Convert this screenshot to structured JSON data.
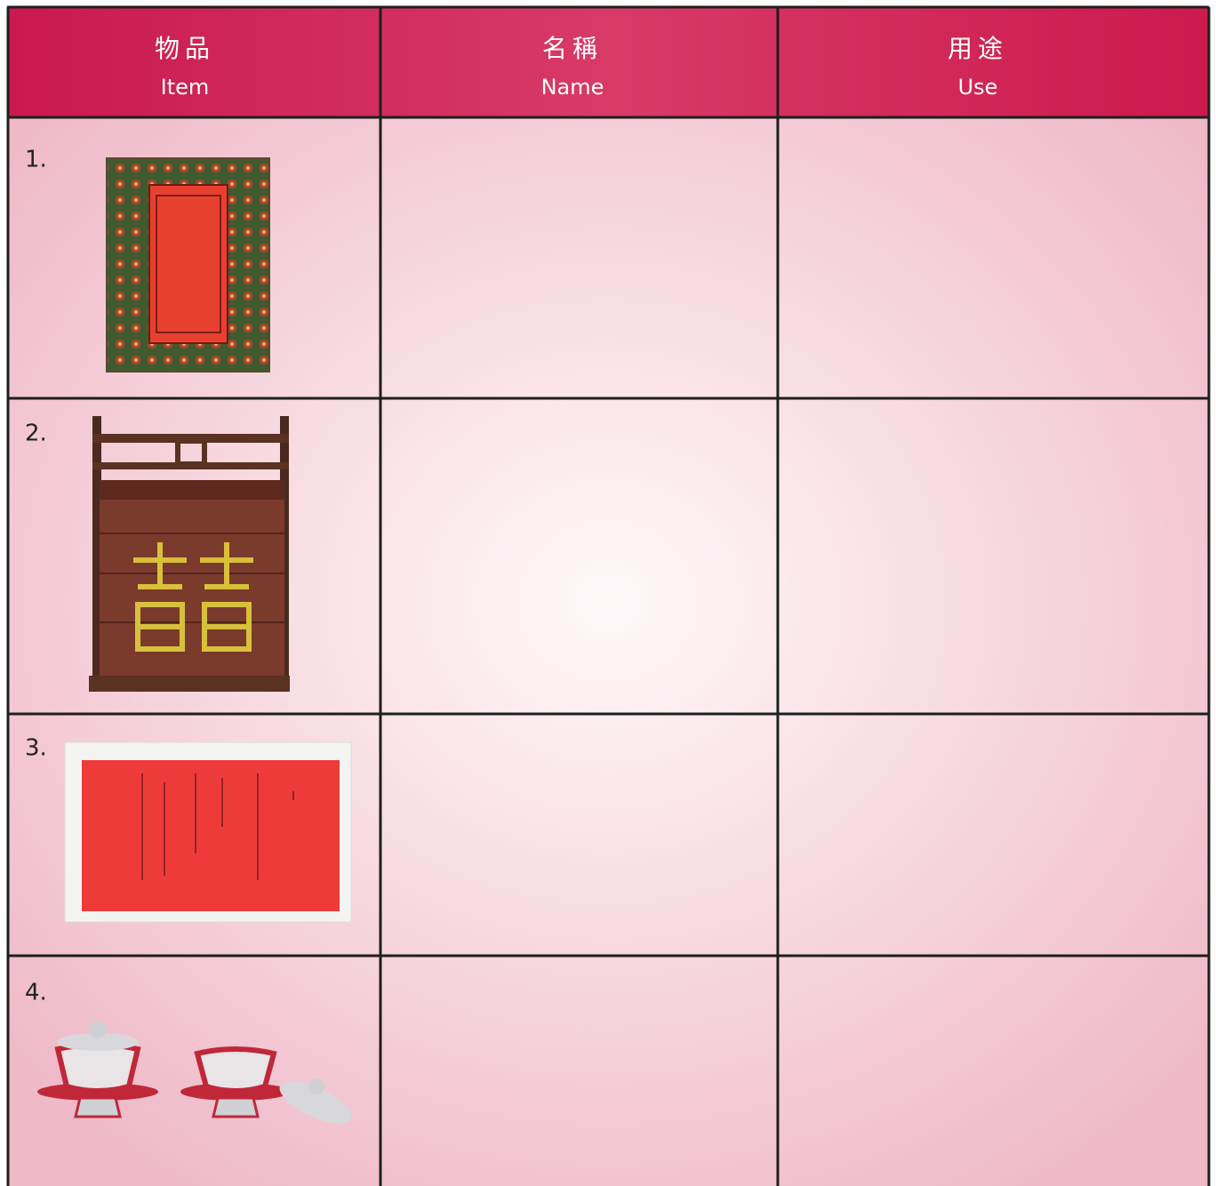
{
  "table": {
    "header": [
      {
        "zh": "物品",
        "en": "Item"
      },
      {
        "zh": "名稱",
        "en": "Name"
      },
      {
        "zh": "用途",
        "en": "Use"
      }
    ],
    "rows": [
      {
        "number": "1."
      },
      {
        "number": "2."
      },
      {
        "number": "3."
      },
      {
        "number": "4."
      }
    ]
  }
}
